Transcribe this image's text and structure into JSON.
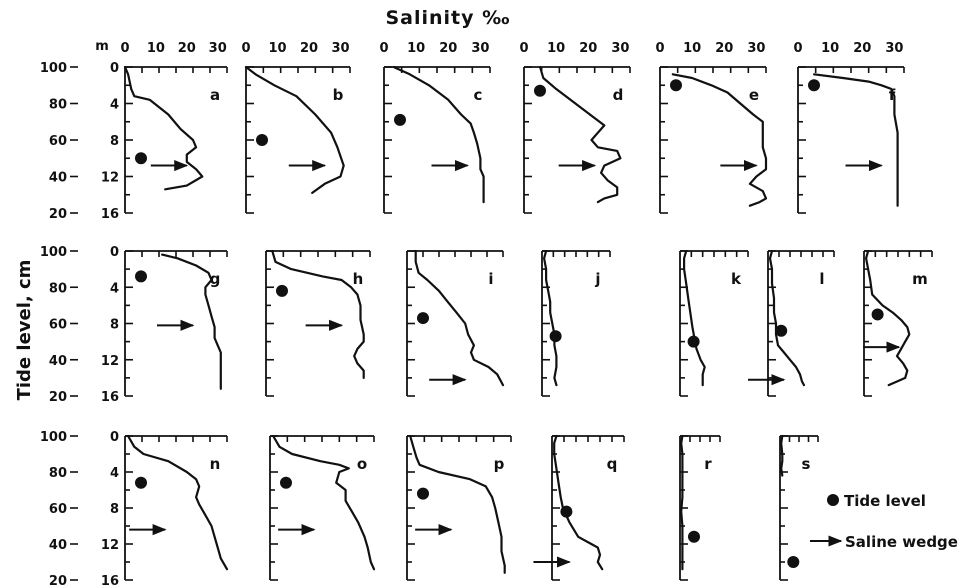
{
  "figure": {
    "title": "Salinity ‰",
    "ylabel": "Tide level, cm",
    "unit_m": "m",
    "legend": {
      "tide": "Tide level",
      "wedge": "Saline wedge"
    }
  },
  "chart_data": {
    "type": "line",
    "title": "Salinity ‰",
    "xlabel": "Salinity ‰",
    "ylabel": "Tide level, cm",
    "x_ticks": [
      "0",
      "10",
      "20",
      "30"
    ],
    "y_ticks_left": [
      "100",
      "80",
      "60",
      "40",
      "20"
    ],
    "y_ticks_depth_m": [
      "0",
      "4",
      "8",
      "12",
      "16"
    ],
    "xlim": [
      0,
      33
    ],
    "ylim": [
      20,
      100
    ],
    "legend": [
      "Tide level",
      "Saline wedge"
    ],
    "panels": [
      {
        "label": "a",
        "tide_level": 50,
        "wedge": {
          "salinity": 20,
          "level": 46
        },
        "curve": [
          [
            0,
            100
          ],
          [
            1,
            96
          ],
          [
            2,
            88
          ],
          [
            3,
            84
          ],
          [
            8,
            82
          ],
          [
            14,
            74
          ],
          [
            18,
            66
          ],
          [
            22,
            60
          ],
          [
            23,
            56
          ],
          [
            20,
            52
          ],
          [
            20,
            48
          ],
          [
            23,
            44
          ],
          [
            25,
            40
          ],
          [
            20,
            35
          ],
          [
            13,
            33
          ]
        ]
      },
      {
        "label": "b",
        "tide_level": 60,
        "wedge": {
          "salinity": 25,
          "level": 46
        },
        "curve": [
          [
            0,
            100
          ],
          [
            3,
            96
          ],
          [
            9,
            90
          ],
          [
            16,
            84
          ],
          [
            22,
            74
          ],
          [
            27,
            64
          ],
          [
            29,
            56
          ],
          [
            31,
            46
          ],
          [
            30,
            40
          ],
          [
            25,
            36
          ],
          [
            21,
            31
          ]
        ]
      },
      {
        "label": "c",
        "tide_level": 71,
        "wedge": {
          "salinity": 26,
          "level": 46
        },
        "curve": [
          [
            3,
            100
          ],
          [
            8,
            96
          ],
          [
            14,
            90
          ],
          [
            20,
            82
          ],
          [
            24,
            74
          ],
          [
            27,
            69
          ],
          [
            28,
            64
          ],
          [
            29,
            58
          ],
          [
            30,
            50
          ],
          [
            30,
            44
          ],
          [
            31,
            40
          ],
          [
            31,
            26
          ]
        ]
      },
      {
        "label": "d",
        "tide_level": 87,
        "wedge": {
          "salinity": 22,
          "level": 46
        },
        "curve": [
          [
            5,
            100
          ],
          [
            6,
            94
          ],
          [
            10,
            88
          ],
          [
            16,
            80
          ],
          [
            22,
            72
          ],
          [
            25,
            68
          ],
          [
            23,
            64
          ],
          [
            21,
            60
          ],
          [
            23,
            56
          ],
          [
            29,
            54
          ],
          [
            30,
            50
          ],
          [
            25,
            46
          ],
          [
            24,
            42
          ],
          [
            26,
            38
          ],
          [
            29,
            34
          ],
          [
            29,
            30
          ],
          [
            25,
            28
          ],
          [
            23,
            26
          ]
        ]
      },
      {
        "label": "e",
        "tide_level": 90,
        "wedge": {
          "salinity": 30,
          "level": 46
        },
        "curve": [
          [
            4,
            96
          ],
          [
            10,
            94
          ],
          [
            16,
            90
          ],
          [
            21,
            86
          ],
          [
            25,
            80
          ],
          [
            29,
            74
          ],
          [
            32,
            70
          ],
          [
            32,
            56
          ],
          [
            33,
            50
          ],
          [
            33,
            44
          ],
          [
            30,
            40
          ],
          [
            28,
            36
          ],
          [
            32,
            32
          ],
          [
            33,
            28
          ],
          [
            31,
            26
          ],
          [
            28,
            24
          ]
        ]
      },
      {
        "label": "f",
        "tide_level": 90,
        "wedge": {
          "salinity": 26,
          "level": 46
        },
        "curve": [
          [
            5,
            96
          ],
          [
            14,
            94
          ],
          [
            22,
            92
          ],
          [
            26,
            90
          ],
          [
            29,
            88
          ],
          [
            30,
            84
          ],
          [
            30,
            74
          ],
          [
            31,
            64
          ],
          [
            31,
            54
          ],
          [
            31,
            44
          ],
          [
            31,
            34
          ],
          [
            31,
            24
          ]
        ]
      },
      {
        "label": "g",
        "tide_level": 86,
        "wedge": {
          "salinity": 22,
          "level": 59
        },
        "curve": [
          [
            12,
            98
          ],
          [
            17,
            96
          ],
          [
            23,
            92
          ],
          [
            27,
            88
          ],
          [
            28,
            84
          ],
          [
            26,
            80
          ],
          [
            26,
            76
          ],
          [
            27,
            70
          ],
          [
            28,
            64
          ],
          [
            29,
            58
          ],
          [
            29,
            52
          ],
          [
            30,
            48
          ],
          [
            31,
            44
          ],
          [
            31,
            24
          ]
        ]
      },
      {
        "label": "h",
        "tide_level": 78,
        "wedge": {
          "salinity": 24,
          "level": 59
        },
        "curve": [
          [
            2,
            100
          ],
          [
            3,
            94
          ],
          [
            8,
            90
          ],
          [
            18,
            86
          ],
          [
            24,
            84
          ],
          [
            27,
            80
          ],
          [
            29,
            76
          ],
          [
            30,
            70
          ],
          [
            30,
            62
          ],
          [
            31,
            54
          ],
          [
            31,
            50
          ],
          [
            29,
            46
          ],
          [
            28,
            42
          ],
          [
            29,
            38
          ],
          [
            31,
            34
          ],
          [
            31,
            30
          ]
        ]
      },
      {
        "label": "i",
        "tide_level": 63,
        "wedge": {
          "salinity": 20,
          "level": 29
        },
        "curve": [
          [
            3,
            100
          ],
          [
            3,
            94
          ],
          [
            4,
            88
          ],
          [
            7,
            84
          ],
          [
            11,
            78
          ],
          [
            14,
            72
          ],
          [
            17,
            66
          ],
          [
            20,
            60
          ],
          [
            21,
            54
          ],
          [
            23,
            48
          ],
          [
            22,
            44
          ],
          [
            23,
            40
          ],
          [
            28,
            36
          ],
          [
            31,
            32
          ],
          [
            33,
            26
          ]
        ]
      },
      {
        "label": "j",
        "tide_level": 53,
        "wedge": null,
        "curve": [
          [
            2,
            100
          ],
          [
            1,
            96
          ],
          [
            2,
            90
          ],
          [
            2,
            84
          ],
          [
            3,
            78
          ],
          [
            4,
            72
          ],
          [
            4,
            66
          ],
          [
            5,
            60
          ],
          [
            6,
            54
          ],
          [
            6,
            48
          ],
          [
            7,
            42
          ],
          [
            7,
            36
          ],
          [
            6,
            30
          ],
          [
            7,
            26
          ]
        ]
      },
      {
        "label": "k",
        "tide_level": 50,
        "wedge": null,
        "curve": [
          [
            3,
            100
          ],
          [
            2,
            96
          ],
          [
            2,
            90
          ],
          [
            3,
            82
          ],
          [
            4,
            74
          ],
          [
            5,
            66
          ],
          [
            6,
            58
          ],
          [
            7,
            52
          ],
          [
            8,
            46
          ],
          [
            10,
            40
          ],
          [
            12,
            36
          ],
          [
            11,
            32
          ],
          [
            11,
            26
          ]
        ]
      },
      {
        "label": "l",
        "tide_level": 56,
        "wedge": {
          "salinity": 8,
          "level": 29
        },
        "curve": [
          [
            2,
            100
          ],
          [
            1,
            96
          ],
          [
            2,
            90
          ],
          [
            2,
            82
          ],
          [
            3,
            74
          ],
          [
            3,
            66
          ],
          [
            4,
            60
          ],
          [
            4,
            54
          ],
          [
            5,
            48
          ],
          [
            8,
            44
          ],
          [
            11,
            40
          ],
          [
            14,
            36
          ],
          [
            16,
            32
          ],
          [
            17,
            28
          ],
          [
            18,
            26
          ]
        ]
      },
      {
        "label": "m",
        "tide_level": 65,
        "wedge": {
          "salinity": 17,
          "level": 47
        },
        "curve": [
          [
            2,
            100
          ],
          [
            1,
            96
          ],
          [
            2,
            90
          ],
          [
            3,
            84
          ],
          [
            4,
            76
          ],
          [
            9,
            70
          ],
          [
            14,
            66
          ],
          [
            18,
            62
          ],
          [
            21,
            58
          ],
          [
            22,
            54
          ],
          [
            20,
            50
          ],
          [
            18,
            46
          ],
          [
            16,
            42
          ],
          [
            19,
            38
          ],
          [
            21,
            34
          ],
          [
            20,
            30
          ],
          [
            16,
            28
          ],
          [
            12,
            26
          ]
        ]
      },
      {
        "label": "n",
        "tide_level": 74,
        "wedge": {
          "salinity": 13,
          "level": 48
        },
        "curve": [
          [
            1,
            100
          ],
          [
            3,
            94
          ],
          [
            6,
            90
          ],
          [
            14,
            86
          ],
          [
            20,
            80
          ],
          [
            23,
            76
          ],
          [
            24,
            72
          ],
          [
            23,
            66
          ],
          [
            24,
            62
          ],
          [
            26,
            56
          ],
          [
            28,
            50
          ],
          [
            29,
            44
          ],
          [
            30,
            38
          ],
          [
            31,
            32
          ],
          [
            33,
            26
          ]
        ]
      },
      {
        "label": "o",
        "tide_level": 74,
        "wedge": {
          "salinity": 14,
          "level": 48
        },
        "curve": [
          [
            1,
            100
          ],
          [
            3,
            94
          ],
          [
            7,
            90
          ],
          [
            16,
            86
          ],
          [
            22,
            84
          ],
          [
            25,
            82
          ],
          [
            22,
            80
          ],
          [
            21,
            74
          ],
          [
            24,
            70
          ],
          [
            24,
            64
          ],
          [
            26,
            58
          ],
          [
            28,
            52
          ],
          [
            30,
            44
          ],
          [
            31,
            38
          ],
          [
            32,
            30
          ],
          [
            33,
            26
          ]
        ]
      },
      {
        "label": "p",
        "tide_level": 68,
        "wedge": {
          "salinity": 14,
          "level": 48
        },
        "curve": [
          [
            1,
            100
          ],
          [
            2,
            94
          ],
          [
            3,
            88
          ],
          [
            4,
            84
          ],
          [
            10,
            80
          ],
          [
            20,
            76
          ],
          [
            25,
            72
          ],
          [
            27,
            66
          ],
          [
            28,
            60
          ],
          [
            29,
            52
          ],
          [
            30,
            44
          ],
          [
            30,
            36
          ],
          [
            31,
            28
          ],
          [
            31,
            24
          ]
        ]
      },
      {
        "label": "q",
        "tide_level": 58,
        "wedge": {
          "salinity": 8,
          "level": 30
        },
        "curve": [
          [
            2,
            100
          ],
          [
            1,
            96
          ],
          [
            1,
            90
          ],
          [
            2,
            82
          ],
          [
            3,
            74
          ],
          [
            4,
            66
          ],
          [
            5,
            60
          ],
          [
            8,
            52
          ],
          [
            12,
            44
          ],
          [
            18,
            40
          ],
          [
            21,
            38
          ],
          [
            22,
            34
          ],
          [
            21,
            30
          ],
          [
            23,
            26
          ]
        ]
      },
      {
        "label": "r",
        "tide_level": 44,
        "wedge": null,
        "curve": [
          [
            2,
            100
          ],
          [
            1,
            96
          ],
          [
            2,
            90
          ],
          [
            2,
            82
          ],
          [
            2,
            74
          ],
          [
            2,
            66
          ],
          [
            1,
            58
          ],
          [
            2,
            50
          ],
          [
            2,
            42
          ],
          [
            2,
            34
          ],
          [
            2,
            26
          ]
        ]
      },
      {
        "label": "s",
        "tide_level": 30,
        "wedge": null,
        "curve": [
          [
            2,
            100
          ],
          [
            1,
            96
          ],
          [
            2,
            90
          ],
          [
            2,
            86
          ],
          [
            1,
            82
          ],
          [
            2,
            78
          ]
        ]
      }
    ]
  }
}
